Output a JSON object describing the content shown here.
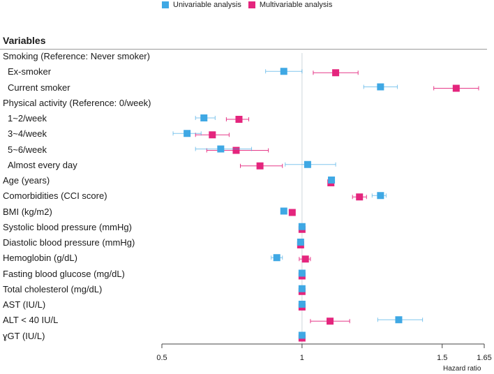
{
  "legend": [
    {
      "label": "Univariable analysis",
      "color": "#3fa8e4"
    },
    {
      "label": "Multivariable analysis",
      "color": "#e4257d"
    }
  ],
  "heading": "Variables",
  "chart_data": {
    "type": "forest",
    "xlabel": "Hazard ratio",
    "xlim": [
      0.5,
      1.65
    ],
    "ticks": [
      0.5,
      1,
      1.5,
      1.65
    ],
    "tick_labels": [
      "0.5",
      "1",
      "1.5",
      "1.65"
    ],
    "reference_line": 1,
    "series": [
      {
        "name": "Univariable analysis",
        "color": "#3fa8e4"
      },
      {
        "name": "Multivariable analysis",
        "color": "#e4257d"
      }
    ],
    "rows": [
      {
        "label": "Smoking (Reference: Never smoker)",
        "indent": false,
        "uni": null,
        "multi": null
      },
      {
        "label": "Ex-smoker",
        "indent": true,
        "uni": {
          "est": 0.935,
          "lo": 0.87,
          "hi": 1.0
        },
        "multi": {
          "est": 1.12,
          "lo": 1.04,
          "hi": 1.2
        }
      },
      {
        "label": "Current smoker",
        "indent": true,
        "uni": {
          "est": 1.28,
          "lo": 1.22,
          "hi": 1.34
        },
        "multi": {
          "est": 1.55,
          "lo": 1.47,
          "hi": 1.63
        }
      },
      {
        "label": "Physical activity (Reference: 0/week)",
        "indent": false,
        "uni": null,
        "multi": null
      },
      {
        "label": "1~2/week",
        "indent": true,
        "uni": {
          "est": 0.65,
          "lo": 0.62,
          "hi": 0.69
        },
        "multi": {
          "est": 0.775,
          "lo": 0.73,
          "hi": 0.81
        }
      },
      {
        "label": "3~4/week",
        "indent": true,
        "uni": {
          "est": 0.59,
          "lo": 0.54,
          "hi": 0.64
        },
        "multi": {
          "est": 0.68,
          "lo": 0.62,
          "hi": 0.74
        }
      },
      {
        "label": "5~6/week",
        "indent": true,
        "uni": {
          "est": 0.71,
          "lo": 0.62,
          "hi": 0.82
        },
        "multi": {
          "est": 0.765,
          "lo": 0.66,
          "hi": 0.88
        }
      },
      {
        "label": "Almost every day",
        "indent": true,
        "uni": {
          "est": 1.02,
          "lo": 0.94,
          "hi": 1.12
        },
        "multi": {
          "est": 0.85,
          "lo": 0.78,
          "hi": 0.93
        }
      },
      {
        "label": "Age (years)",
        "indent": false,
        "uni": {
          "est": 1.105,
          "lo": 1.1,
          "hi": 1.11
        },
        "multi": {
          "est": 1.103,
          "lo": 1.098,
          "hi": 1.108
        }
      },
      {
        "label": "Comorbidities (CCI score)",
        "indent": false,
        "uni": {
          "est": 1.28,
          "lo": 1.25,
          "hi": 1.3
        },
        "multi": {
          "est": 1.205,
          "lo": 1.18,
          "hi": 1.23
        }
      },
      {
        "label": "BMI (kg/m2)",
        "indent": false,
        "uni": {
          "est": 0.935,
          "lo": 0.93,
          "hi": 0.945
        },
        "multi": {
          "est": 0.965,
          "lo": 0.96,
          "hi": 0.97
        }
      },
      {
        "label": "Systolic blood pressure (mmHg)",
        "indent": false,
        "uni": {
          "est": 1.0,
          "lo": 1.0,
          "hi": 1.0
        },
        "multi": {
          "est": 1.0,
          "lo": 1.0,
          "hi": 1.0
        }
      },
      {
        "label": "Diastolic blood pressure (mmHg)",
        "indent": false,
        "uni": {
          "est": 0.995,
          "lo": 0.99,
          "hi": 1.0
        },
        "multi": {
          "est": 0.995,
          "lo": 0.99,
          "hi": 1.0
        }
      },
      {
        "label": "Hemoglobin (g/dL)",
        "indent": false,
        "uni": {
          "est": 0.91,
          "lo": 0.89,
          "hi": 0.93
        },
        "multi": {
          "est": 1.012,
          "lo": 0.99,
          "hi": 1.03
        }
      },
      {
        "label": "Fasting blood glucose (mg/dL)",
        "indent": false,
        "uni": {
          "est": 1.0,
          "lo": 1.0,
          "hi": 1.0
        },
        "multi": {
          "est": 1.0,
          "lo": 1.0,
          "hi": 1.0
        }
      },
      {
        "label": "Total cholesterol (mg/dL)",
        "indent": false,
        "uni": {
          "est": 1.0,
          "lo": 1.0,
          "hi": 1.0
        },
        "multi": {
          "est": 1.0,
          "lo": 1.0,
          "hi": 1.0
        }
      },
      {
        "label": "AST (IU/L)",
        "indent": false,
        "uni": {
          "est": 1.0,
          "lo": 1.0,
          "hi": 1.0
        },
        "multi": {
          "est": 1.0,
          "lo": 1.0,
          "hi": 1.0
        }
      },
      {
        "label": "ALT < 40 IU/L",
        "indent": false,
        "uni": {
          "est": 1.345,
          "lo": 1.27,
          "hi": 1.43
        },
        "multi": {
          "est": 1.1,
          "lo": 1.03,
          "hi": 1.17
        }
      },
      {
        "label": "ɣGT (IU/L)",
        "indent": false,
        "uni": {
          "est": 1.0,
          "lo": 1.0,
          "hi": 1.0
        },
        "multi": {
          "est": 1.0,
          "lo": 1.0,
          "hi": 1.0
        }
      }
    ]
  }
}
